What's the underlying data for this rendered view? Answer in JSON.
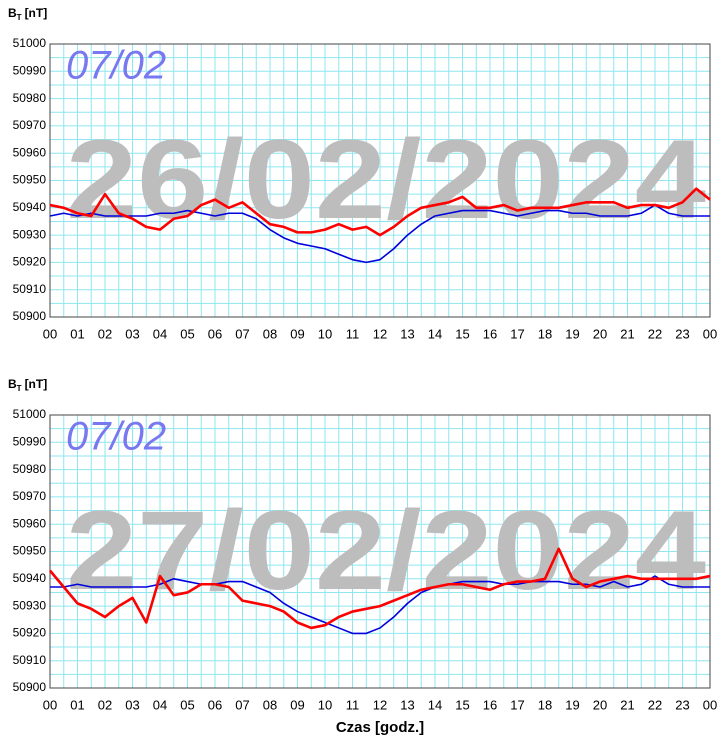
{
  "chart_data": [
    {
      "type": "line",
      "ylabel": {
        "symbol": "B",
        "subscript": "T",
        "unit": "[nT]"
      },
      "annotations": {
        "date": "26/02/2024",
        "tag": "07/02"
      },
      "x": [
        0,
        0.5,
        1,
        1.5,
        2,
        2.5,
        3,
        3.5,
        4,
        4.5,
        5,
        5.5,
        6,
        6.5,
        7,
        7.5,
        8,
        8.5,
        9,
        9.5,
        10,
        10.5,
        11,
        11.5,
        12,
        12.5,
        13,
        13.5,
        14,
        14.5,
        15,
        15.5,
        16,
        16.5,
        17,
        17.5,
        18,
        18.5,
        19,
        19.5,
        20,
        20.5,
        21,
        21.5,
        22,
        22.5,
        23,
        23.5,
        24
      ],
      "series": [
        {
          "color": "#0000dd",
          "values": [
            50937,
            50938,
            50937,
            50938,
            50937,
            50937,
            50937,
            50937,
            50938,
            50938,
            50939,
            50938,
            50937,
            50938,
            50938,
            50936,
            50932,
            50929,
            50927,
            50926,
            50925,
            50923,
            50921,
            50920,
            50921,
            50925,
            50930,
            50934,
            50937,
            50938,
            50939,
            50939,
            50939,
            50938,
            50937,
            50938,
            50939,
            50939,
            50938,
            50938,
            50937,
            50937,
            50937,
            50938,
            50941,
            50938,
            50937,
            50937,
            50937
          ]
        },
        {
          "color": "#ff0000",
          "values": [
            50941,
            50940,
            50938,
            50937,
            50945,
            50938,
            50936,
            50933,
            50932,
            50936,
            50937,
            50941,
            50943,
            50940,
            50942,
            50938,
            50934,
            50933,
            50931,
            50931,
            50932,
            50934,
            50932,
            50933,
            50930,
            50933,
            50937,
            50940,
            50941,
            50942,
            50944,
            50940,
            50940,
            50941,
            50939,
            50940,
            50940,
            50940,
            50941,
            50942,
            50942,
            50942,
            50940,
            50941,
            50941,
            50940,
            50942,
            50947,
            50943
          ]
        }
      ],
      "xlim": [
        0,
        24
      ],
      "ylim": [
        50900,
        51000
      ],
      "xticks": [
        {
          "value": 0,
          "label": "00"
        },
        {
          "value": 1,
          "label": "01"
        },
        {
          "value": 2,
          "label": "02"
        },
        {
          "value": 3,
          "label": "03"
        },
        {
          "value": 4,
          "label": "04"
        },
        {
          "value": 5,
          "label": "05"
        },
        {
          "value": 6,
          "label": "06"
        },
        {
          "value": 7,
          "label": "07"
        },
        {
          "value": 8,
          "label": "08"
        },
        {
          "value": 9,
          "label": "09"
        },
        10,
        11,
        12,
        13,
        14,
        15,
        16,
        17,
        18,
        19,
        20,
        21,
        22,
        23,
        {
          "value": 24,
          "label": "00"
        }
      ],
      "yticks": [
        50900,
        50910,
        50920,
        50930,
        50940,
        50950,
        50960,
        50970,
        50980,
        50990,
        51000
      ],
      "grid": true
    },
    {
      "type": "line",
      "ylabel": {
        "symbol": "B",
        "subscript": "T",
        "unit": "[nT]"
      },
      "xlabel": "Czas [godz.]",
      "annotations": {
        "date": "27/02/2024",
        "tag": "07/02"
      },
      "x": [
        0,
        0.5,
        1,
        1.5,
        2,
        2.5,
        3,
        3.5,
        4,
        4.5,
        5,
        5.5,
        6,
        6.5,
        7,
        7.5,
        8,
        8.5,
        9,
        9.5,
        10,
        10.5,
        11,
        11.5,
        12,
        12.5,
        13,
        13.5,
        14,
        14.5,
        15,
        15.5,
        16,
        16.5,
        17,
        17.5,
        18,
        18.5,
        19,
        19.5,
        20,
        20.5,
        21,
        21.5,
        22,
        22.5,
        23,
        23.5,
        24
      ],
      "series": [
        {
          "color": "#0000dd",
          "values": [
            50937,
            50937,
            50938,
            50937,
            50937,
            50937,
            50937,
            50937,
            50938,
            50940,
            50939,
            50938,
            50938,
            50939,
            50939,
            50937,
            50935,
            50931,
            50928,
            50926,
            50924,
            50922,
            50920,
            50920,
            50922,
            50926,
            50931,
            50935,
            50937,
            50938,
            50939,
            50939,
            50939,
            50938,
            50938,
            50939,
            50939,
            50939,
            50938,
            50938,
            50937,
            50939,
            50937,
            50938,
            50941,
            50938,
            50937,
            50937,
            50937
          ]
        },
        {
          "color": "#ff0000",
          "values": [
            50943,
            50937,
            50931,
            50929,
            50926,
            50930,
            50933,
            50924,
            50941,
            50934,
            50935,
            50938,
            50938,
            50937,
            50932,
            50931,
            50930,
            50928,
            50924,
            50922,
            50923,
            50926,
            50928,
            50929,
            50930,
            50932,
            50934,
            50936,
            50937,
            50938,
            50938,
            50937,
            50936,
            50938,
            50939,
            50939,
            50940,
            50951,
            50940,
            50937,
            50939,
            50940,
            50941,
            50940,
            50940,
            50940,
            50940,
            50940,
            50941
          ]
        }
      ],
      "xlim": [
        0,
        24
      ],
      "ylim": [
        50900,
        51000
      ],
      "xticks": [
        {
          "value": 0,
          "label": "00"
        },
        {
          "value": 1,
          "label": "01"
        },
        {
          "value": 2,
          "label": "02"
        },
        {
          "value": 3,
          "label": "03"
        },
        {
          "value": 4,
          "label": "04"
        },
        {
          "value": 5,
          "label": "05"
        },
        {
          "value": 6,
          "label": "06"
        },
        {
          "value": 7,
          "label": "07"
        },
        {
          "value": 8,
          "label": "08"
        },
        {
          "value": 9,
          "label": "09"
        },
        10,
        11,
        12,
        13,
        14,
        15,
        16,
        17,
        18,
        19,
        20,
        21,
        22,
        23,
        {
          "value": 24,
          "label": "00"
        }
      ],
      "yticks": [
        50900,
        50910,
        50920,
        50930,
        50940,
        50950,
        50960,
        50970,
        50980,
        50990,
        51000
      ],
      "grid": true
    }
  ]
}
